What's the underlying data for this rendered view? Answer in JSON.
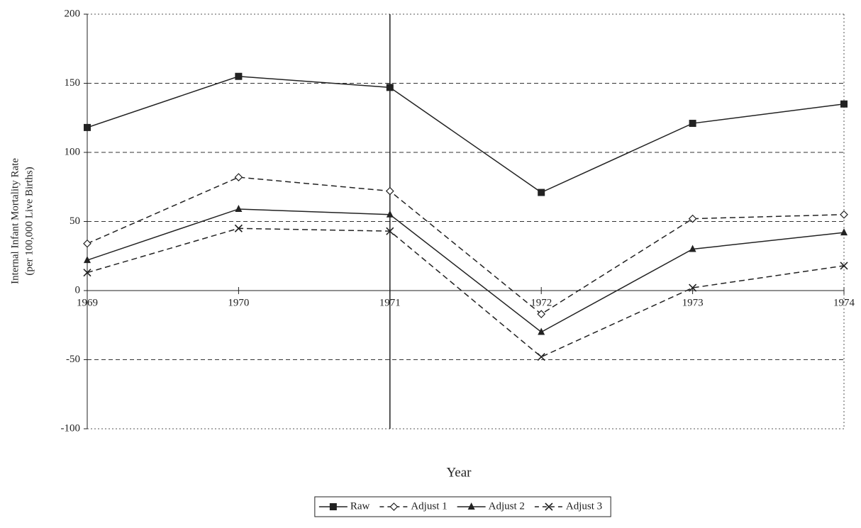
{
  "chart_data": {
    "type": "line",
    "x_label": "Year",
    "y_label": [
      "Internal Infant Mortality Rate",
      "(per 100,000 Live Births)"
    ],
    "x": [
      1969,
      1970,
      1971,
      1972,
      1973,
      1974
    ],
    "xlim": [
      1969,
      1974
    ],
    "xticks": [
      1969,
      1970,
      1971,
      1972,
      1973,
      1974
    ],
    "ylim": [
      -100,
      200
    ],
    "yticks": [
      -100,
      -50,
      0,
      50,
      100,
      150,
      200
    ],
    "grid": true,
    "vertical_line": 1971,
    "legend": "bottom",
    "series": [
      {
        "name": "Raw",
        "color": "#222222",
        "dashed": false,
        "marker": "square",
        "values": [
          118,
          155,
          147,
          71,
          121,
          135
        ]
      },
      {
        "name": "Adjust 1",
        "color": "#222222",
        "dashed": true,
        "marker": "diamond",
        "values": [
          34,
          82,
          72,
          -17,
          52,
          55
        ]
      },
      {
        "name": "Adjust 2",
        "color": "#222222",
        "dashed": false,
        "marker": "triangle",
        "values": [
          22,
          59,
          55,
          -30,
          30,
          42
        ]
      },
      {
        "name": "Adjust 3",
        "color": "#222222",
        "dashed": true,
        "marker": "x",
        "values": [
          13,
          45,
          43,
          -48,
          2,
          18
        ]
      }
    ]
  }
}
